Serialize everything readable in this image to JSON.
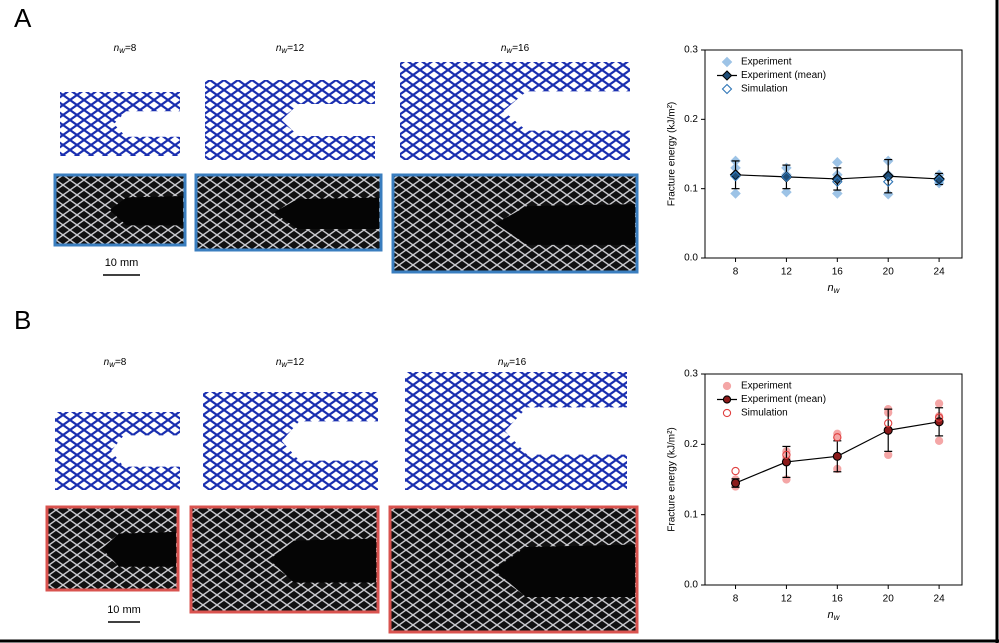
{
  "panels": [
    {
      "label": "A",
      "images": [
        {
          "n": "n",
          "sub": "w",
          "eq": "=8"
        },
        {
          "n": "n",
          "sub": "w",
          "eq": "=12"
        },
        {
          "n": "n",
          "sub": "w",
          "eq": "=16"
        }
      ],
      "scale_bar": "10 mm"
    },
    {
      "label": "B",
      "images": [
        {
          "n": "n",
          "sub": "w",
          "eq": "=8"
        },
        {
          "n": "n",
          "sub": "w",
          "eq": "=12"
        },
        {
          "n": "n",
          "sub": "w",
          "eq": "=16"
        }
      ],
      "scale_bar": "10 mm"
    }
  ],
  "chart_data": [
    {
      "type": "scatter",
      "y_label": "Fracture energy (kJ/m²)",
      "x_label": "n",
      "x_label_sub": "w",
      "xlim": [
        5.6,
        25.8
      ],
      "xticks": [
        8,
        12,
        16,
        20,
        24
      ],
      "ylim": [
        0,
        0.3
      ],
      "yticks": [
        0.0,
        0.1,
        0.2,
        0.3
      ],
      "yticks_labels": [
        "0.0",
        "0.1",
        "0.2",
        "0.3"
      ],
      "legend": "upper-left",
      "series": [
        {
          "name": "Experiment",
          "color": "#9dc3e6",
          "marker": "diamond",
          "filled": true,
          "x": [
            8,
            8,
            8,
            12,
            12,
            12,
            16,
            16,
            16,
            20,
            20,
            20,
            24,
            24,
            24
          ],
          "values": [
            0.093,
            0.13,
            0.14,
            0.095,
            0.12,
            0.13,
            0.093,
            0.12,
            0.138,
            0.092,
            0.12,
            0.14,
            0.108,
            0.115,
            0.12
          ]
        },
        {
          "name": "Experiment (mean)",
          "color": "#1f4e79",
          "marker": "diamond",
          "filled": true,
          "line": true,
          "x": [
            8,
            12,
            16,
            20,
            24
          ],
          "values": [
            0.12,
            0.117,
            0.114,
            0.118,
            0.114
          ],
          "error": [
            0.02,
            0.017,
            0.016,
            0.024,
            0.008
          ]
        },
        {
          "name": "Simulation",
          "color": "#2e75b6",
          "marker": "diamond",
          "filled": false,
          "x": [
            8,
            12,
            16,
            20,
            24
          ],
          "values": [
            0.118,
            0.117,
            0.11,
            0.11,
            0.112
          ]
        }
      ]
    },
    {
      "type": "scatter",
      "y_label": "Fracture energy (kJ/m²)",
      "x_label": "n",
      "x_label_sub": "w",
      "xlim": [
        5.6,
        25.8
      ],
      "xticks": [
        8,
        12,
        16,
        20,
        24
      ],
      "ylim": [
        0,
        0.3
      ],
      "yticks": [
        0.0,
        0.1,
        0.2,
        0.3
      ],
      "yticks_labels": [
        "0.0",
        "0.1",
        "0.2",
        "0.3"
      ],
      "legend": "upper-left",
      "series": [
        {
          "name": "Experiment",
          "color": "#f4a6a6",
          "marker": "circle",
          "filled": true,
          "x": [
            8,
            8,
            8,
            12,
            12,
            12,
            16,
            16,
            16,
            20,
            20,
            20,
            24,
            24,
            24
          ],
          "values": [
            0.14,
            0.148,
            0.15,
            0.15,
            0.18,
            0.19,
            0.165,
            0.21,
            0.215,
            0.185,
            0.245,
            0.25,
            0.205,
            0.24,
            0.258
          ]
        },
        {
          "name": "Experiment (mean)",
          "color": "#8b1a1a",
          "marker": "circle",
          "filled": true,
          "line": true,
          "x": [
            8,
            12,
            16,
            20,
            24
          ],
          "values": [
            0.145,
            0.175,
            0.183,
            0.22,
            0.232
          ],
          "error": [
            0.006,
            0.022,
            0.022,
            0.03,
            0.02
          ]
        },
        {
          "name": "Simulation",
          "color": "#e04040",
          "marker": "circle",
          "filled": false,
          "x": [
            8,
            12,
            16,
            20,
            24
          ],
          "values": [
            0.162,
            0.185,
            0.21,
            0.23,
            0.238
          ]
        }
      ]
    }
  ]
}
